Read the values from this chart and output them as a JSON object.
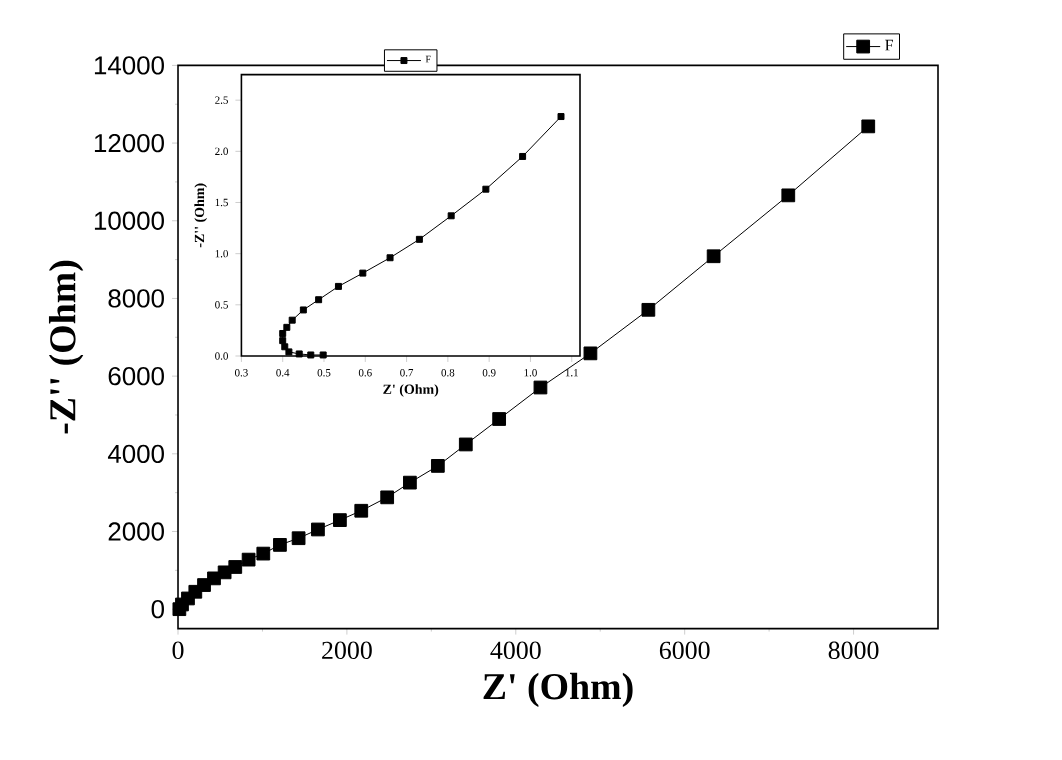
{
  "chart_data": [
    {
      "type": "line",
      "xlabel": "Z' (Ohm)",
      "ylabel": "-Z'' (Ohm)",
      "xlim": [
        0,
        9000
      ],
      "ylim": [
        -500,
        14000
      ],
      "xticks": [
        0,
        2000,
        4000,
        6000,
        8000
      ],
      "yticks": [
        0,
        2000,
        4000,
        6000,
        8000,
        10000,
        12000,
        14000
      ],
      "marker": "square",
      "line_style": "solid",
      "legend": "top right",
      "grid": false,
      "series": [
        {
          "name": "F",
          "color": "#000000",
          "x": [
            16,
            47,
            118,
            205,
            308,
            426,
            552,
            678,
            836,
            1010,
            1207,
            1428,
            1657,
            1917,
            2170,
            2477,
            2746,
            3077,
            3408,
            3803,
            4292,
            4884,
            5570,
            6343,
            7227,
            8174
          ],
          "values": [
            0,
            121,
            276,
            448,
            621,
            793,
            948,
            1086,
            1276,
            1431,
            1655,
            1827,
            2052,
            2293,
            2534,
            2879,
            3258,
            3689,
            4241,
            4896,
            5707,
            6586,
            7707,
            9086,
            10654,
            12430
          ]
        }
      ]
    },
    {
      "type": "line",
      "xlabel": "Z' (Ohm)",
      "ylabel": "-Z'' (Ohm)",
      "xlim": [
        0.3,
        1.12
      ],
      "ylim": [
        0,
        2.75
      ],
      "xticks": [
        0.3,
        0.4,
        0.5,
        0.6,
        0.7,
        0.8,
        0.9,
        {
          "value": 1.0,
          "label": "1.0"
        },
        1.1
      ],
      "yticks": [
        {
          "value": 0,
          "label": "0.0"
        },
        0.5,
        {
          "value": 1.0,
          "label": "1.0"
        },
        1.5,
        {
          "value": 2.0,
          "label": "2.0"
        },
        2.5
      ],
      "marker": "square",
      "line_style": "solid",
      "legend": "top",
      "grid": false,
      "series": [
        {
          "name": "F",
          "color": "#000000",
          "x": [
            0.498,
            0.468,
            0.44,
            0.415,
            0.405,
            0.4,
            0.4,
            0.41,
            0.423,
            0.45,
            0.487,
            0.535,
            0.594,
            0.66,
            0.731,
            0.808,
            0.892,
            0.981,
            1.074
          ],
          "values": [
            0.01,
            0.01,
            0.02,
            0.04,
            0.09,
            0.15,
            0.22,
            0.28,
            0.35,
            0.45,
            0.55,
            0.68,
            0.81,
            0.96,
            1.14,
            1.37,
            1.63,
            1.95,
            2.34
          ]
        }
      ]
    }
  ]
}
